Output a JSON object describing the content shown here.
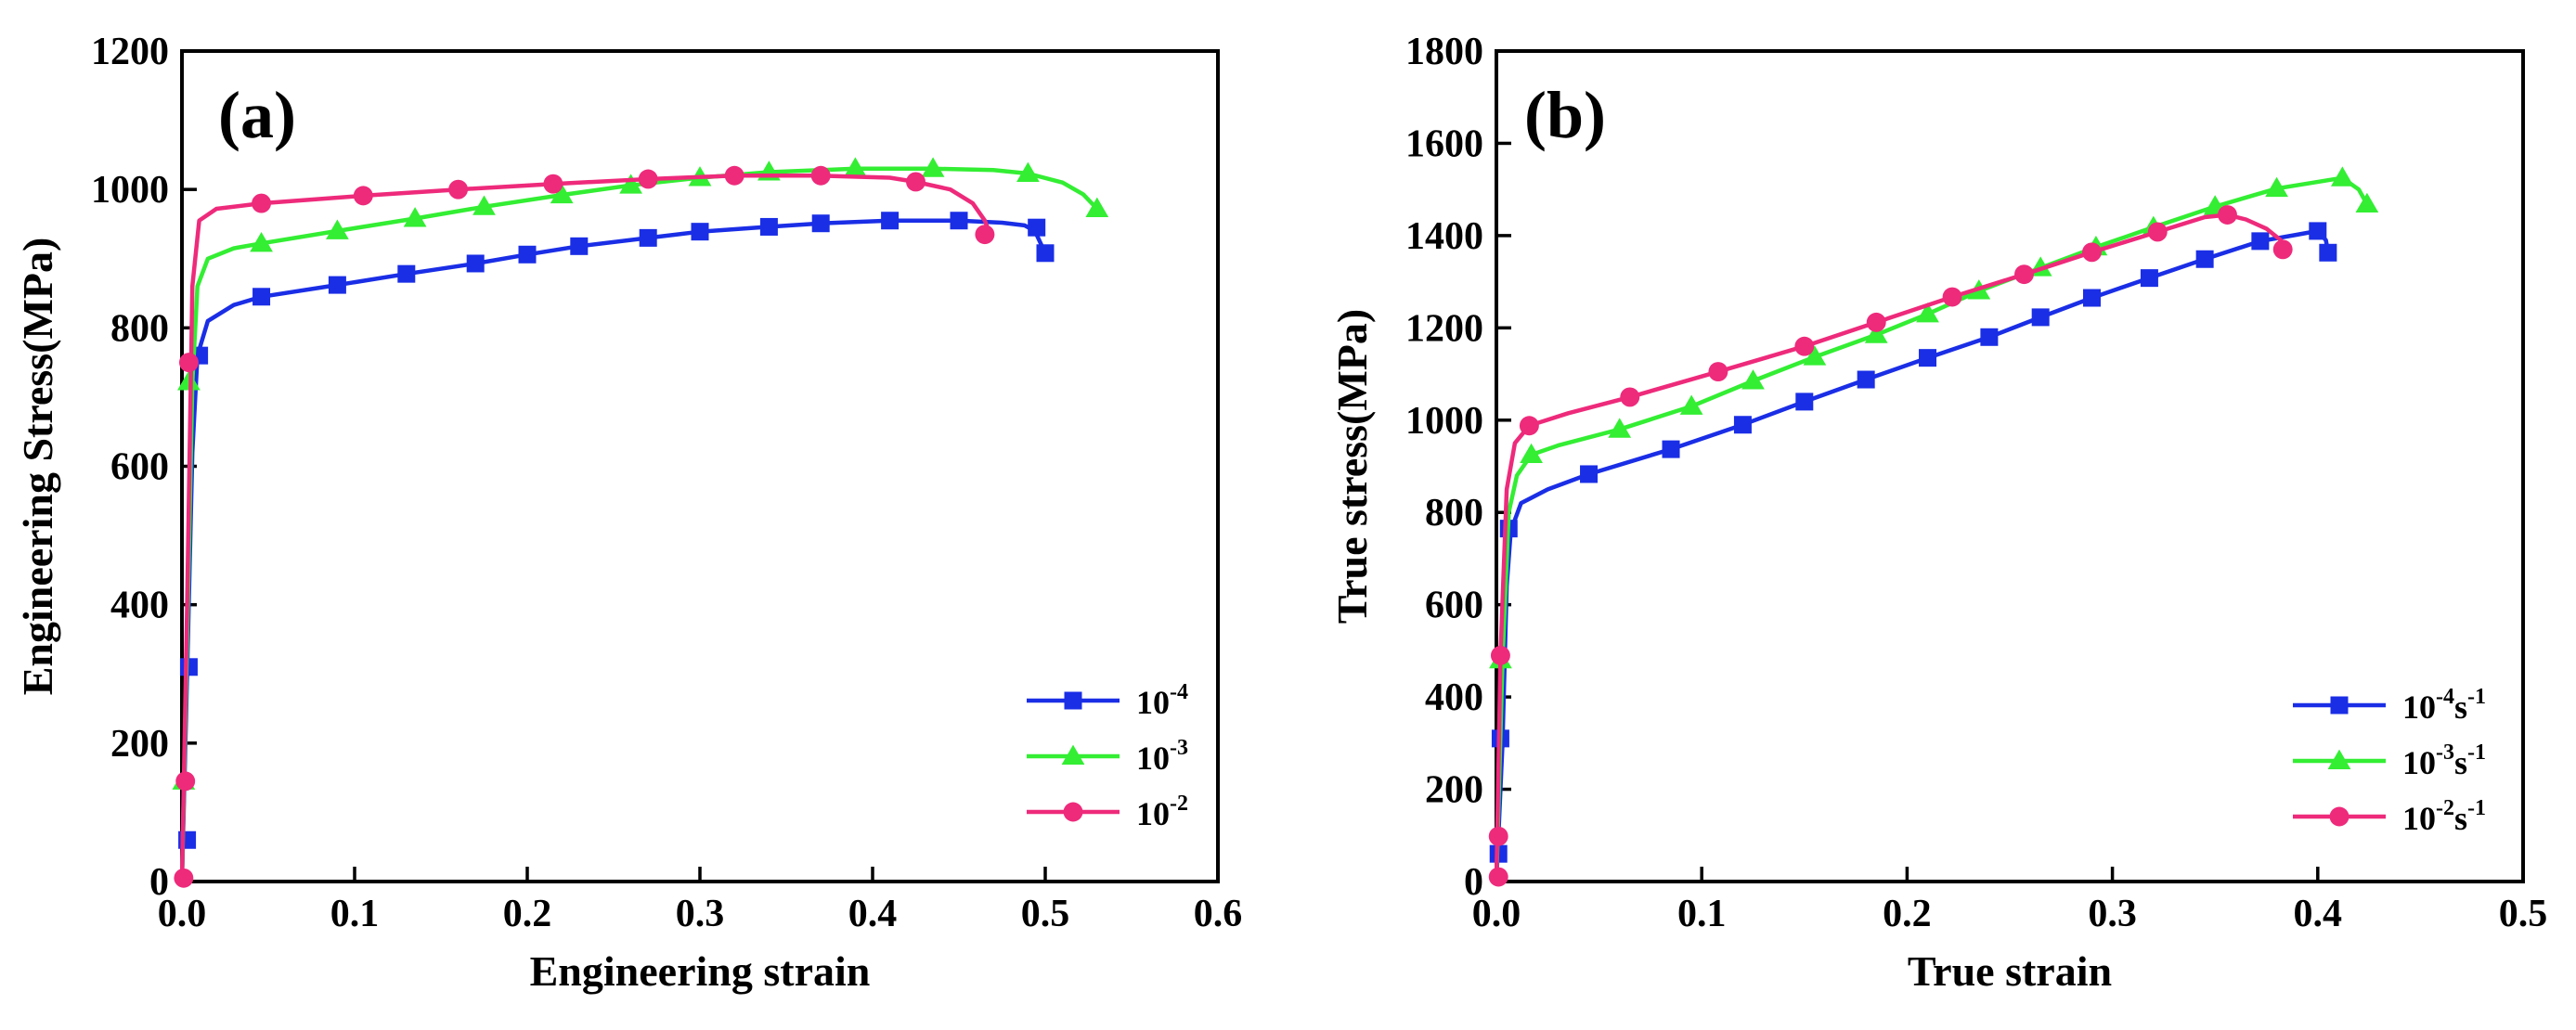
{
  "colors": {
    "s1": "#1a2ee6",
    "s2": "#33ee33",
    "s3": "#ee2a7b"
  },
  "chart_data": [
    {
      "type": "line",
      "panel_label": "(a)",
      "xlabel": "Engineering strain",
      "ylabel": "Engineering Stress(MPa)",
      "xlim": [
        0,
        0.6
      ],
      "ylim": [
        0,
        1200
      ],
      "xticks": [
        0.0,
        0.1,
        0.2,
        0.3,
        0.4,
        0.5,
        0.6
      ],
      "xtick_labels": [
        "0.0",
        "0.1",
        "0.2",
        "0.3",
        "0.4",
        "0.5",
        "0.6"
      ],
      "yticks": [
        0,
        200,
        400,
        600,
        800,
        1000,
        1200
      ],
      "ytick_labels": [
        "0",
        "200",
        "400",
        "600",
        "800",
        "1000",
        "1200"
      ],
      "legend_position": "bottom-right",
      "series": [
        {
          "name": "10-4",
          "legend_base": "10",
          "legend_exp": "-4",
          "legend_tail": "",
          "legend_tail_exp": "",
          "color_key": "s1",
          "marker": "square",
          "curve": [
            [
              0,
              0
            ],
            [
              0.003,
              300
            ],
            [
              0.006,
              620
            ],
            [
              0.009,
              760
            ],
            [
              0.015,
              810
            ],
            [
              0.03,
              833
            ],
            [
              0.046,
              845
            ],
            [
              0.09,
              862
            ],
            [
              0.13,
              878
            ],
            [
              0.17,
              893
            ],
            [
              0.2,
              906
            ],
            [
              0.23,
              918
            ],
            [
              0.27,
              930
            ],
            [
              0.3,
              939
            ],
            [
              0.34,
              946
            ],
            [
              0.37,
              951
            ],
            [
              0.41,
              955
            ],
            [
              0.45,
              955
            ],
            [
              0.475,
              952
            ],
            [
              0.488,
              948
            ],
            [
              0.494,
              940
            ],
            [
              0.5,
              908
            ]
          ],
          "markers": [
            [
              0.003,
              60
            ],
            [
              0.004,
              310
            ],
            [
              0.01,
              760
            ],
            [
              0.046,
              845
            ],
            [
              0.09,
              862
            ],
            [
              0.13,
              878
            ],
            [
              0.17,
              893
            ],
            [
              0.2,
              906
            ],
            [
              0.23,
              918
            ],
            [
              0.27,
              930
            ],
            [
              0.3,
              939
            ],
            [
              0.34,
              946
            ],
            [
              0.37,
              951
            ],
            [
              0.41,
              955
            ],
            [
              0.45,
              955
            ],
            [
              0.495,
              945
            ],
            [
              0.5,
              908
            ]
          ]
        },
        {
          "name": "10-3",
          "legend_base": "10",
          "legend_exp": "-3",
          "legend_tail": "",
          "legend_tail_exp": "",
          "color_key": "s2",
          "marker": "triangle",
          "curve": [
            [
              0,
              0
            ],
            [
              0.003,
              350
            ],
            [
              0.006,
              720
            ],
            [
              0.009,
              860
            ],
            [
              0.015,
              900
            ],
            [
              0.03,
              915
            ],
            [
              0.046,
              922
            ],
            [
              0.09,
              940
            ],
            [
              0.135,
              958
            ],
            [
              0.175,
              975
            ],
            [
              0.22,
              992
            ],
            [
              0.26,
              1006
            ],
            [
              0.3,
              1017
            ],
            [
              0.34,
              1025
            ],
            [
              0.39,
              1030
            ],
            [
              0.435,
              1030
            ],
            [
              0.47,
              1028
            ],
            [
              0.49,
              1023
            ],
            [
              0.51,
              1010
            ],
            [
              0.522,
              993
            ],
            [
              0.53,
              972
            ]
          ],
          "markers": [
            [
              0.001,
              145
            ],
            [
              0.004,
              722
            ],
            [
              0.046,
              922
            ],
            [
              0.09,
              940
            ],
            [
              0.135,
              958
            ],
            [
              0.175,
              975
            ],
            [
              0.22,
              992
            ],
            [
              0.26,
              1006
            ],
            [
              0.3,
              1017
            ],
            [
              0.34,
              1025
            ],
            [
              0.39,
              1030
            ],
            [
              0.435,
              1030
            ],
            [
              0.49,
              1023
            ],
            [
              0.53,
              972
            ]
          ]
        },
        {
          "name": "10-2",
          "legend_base": "10",
          "legend_exp": "-2",
          "legend_tail": "",
          "legend_tail_exp": "",
          "color_key": "s3",
          "marker": "circle",
          "curve": [
            [
              0,
              0
            ],
            [
              0.003,
              400
            ],
            [
              0.006,
              860
            ],
            [
              0.01,
              955
            ],
            [
              0.02,
              972
            ],
            [
              0.046,
              980
            ],
            [
              0.105,
              991
            ],
            [
              0.16,
              1000
            ],
            [
              0.215,
              1008
            ],
            [
              0.27,
              1015
            ],
            [
              0.32,
              1020
            ],
            [
              0.37,
              1020
            ],
            [
              0.41,
              1017
            ],
            [
              0.425,
              1011
            ],
            [
              0.445,
              1000
            ],
            [
              0.458,
              980
            ],
            [
              0.465,
              955
            ],
            [
              0.468,
              935
            ]
          ],
          "markers": [
            [
              0.001,
              5
            ],
            [
              0.002,
              145
            ],
            [
              0.004,
              750
            ],
            [
              0.046,
              980
            ],
            [
              0.105,
              991
            ],
            [
              0.16,
              1000
            ],
            [
              0.215,
              1008
            ],
            [
              0.27,
              1015
            ],
            [
              0.32,
              1020
            ],
            [
              0.37,
              1020
            ],
            [
              0.425,
              1011
            ],
            [
              0.465,
              935
            ]
          ]
        }
      ]
    },
    {
      "type": "line",
      "panel_label": "(b)",
      "xlabel": "True strain",
      "ylabel": "True stress(MPa)",
      "xlim": [
        0,
        0.5
      ],
      "ylim": [
        0,
        1800
      ],
      "xticks": [
        0.0,
        0.1,
        0.2,
        0.3,
        0.4,
        0.5
      ],
      "xtick_labels": [
        "0.0",
        "0.1",
        "0.2",
        "0.3",
        "0.4",
        "0.5"
      ],
      "yticks": [
        0,
        200,
        400,
        600,
        800,
        1000,
        1200,
        1400,
        1600,
        1800
      ],
      "ytick_labels": [
        "0",
        "200",
        "400",
        "600",
        "800",
        "1000",
        "1200",
        "1400",
        "1600",
        "1800"
      ],
      "legend_position": "bottom-right",
      "series": [
        {
          "name": "10-4s-1",
          "legend_base": "10",
          "legend_exp": "-4",
          "legend_tail": "s",
          "legend_tail_exp": "-1",
          "color_key": "s1",
          "marker": "square",
          "curve": [
            [
              0,
              0
            ],
            [
              0.003,
              300
            ],
            [
              0.005,
              640
            ],
            [
              0.007,
              760
            ],
            [
              0.012,
              820
            ],
            [
              0.025,
              850
            ],
            [
              0.045,
              883
            ],
            [
              0.085,
              937
            ],
            [
              0.12,
              990
            ],
            [
              0.15,
              1040
            ],
            [
              0.18,
              1088
            ],
            [
              0.21,
              1135
            ],
            [
              0.24,
              1180
            ],
            [
              0.265,
              1223
            ],
            [
              0.29,
              1265
            ],
            [
              0.318,
              1308
            ],
            [
              0.345,
              1349
            ],
            [
              0.372,
              1388
            ],
            [
              0.39,
              1402
            ],
            [
              0.4,
              1410
            ],
            [
              0.404,
              1390
            ],
            [
              0.405,
              1363
            ]
          ],
          "markers": [
            [
              0.001,
              60
            ],
            [
              0.002,
              310
            ],
            [
              0.006,
              765
            ],
            [
              0.045,
              883
            ],
            [
              0.085,
              937
            ],
            [
              0.12,
              990
            ],
            [
              0.15,
              1040
            ],
            [
              0.18,
              1088
            ],
            [
              0.21,
              1135
            ],
            [
              0.24,
              1180
            ],
            [
              0.265,
              1223
            ],
            [
              0.29,
              1265
            ],
            [
              0.318,
              1308
            ],
            [
              0.345,
              1349
            ],
            [
              0.372,
              1388
            ],
            [
              0.4,
              1410
            ],
            [
              0.405,
              1363
            ]
          ]
        },
        {
          "name": "10-3s-1",
          "legend_base": "10",
          "legend_exp": "-3",
          "legend_tail": "s",
          "legend_tail_exp": "-1",
          "color_key": "s2",
          "marker": "triangle",
          "curve": [
            [
              0,
              0
            ],
            [
              0.003,
              480
            ],
            [
              0.006,
              800
            ],
            [
              0.01,
              880
            ],
            [
              0.017,
              925
            ],
            [
              0.03,
              945
            ],
            [
              0.06,
              980
            ],
            [
              0.095,
              1030
            ],
            [
              0.125,
              1085
            ],
            [
              0.155,
              1137
            ],
            [
              0.185,
              1185
            ],
            [
              0.21,
              1230
            ],
            [
              0.235,
              1280
            ],
            [
              0.265,
              1330
            ],
            [
              0.292,
              1375
            ],
            [
              0.32,
              1418
            ],
            [
              0.35,
              1463
            ],
            [
              0.38,
              1502
            ],
            [
              0.412,
              1525
            ],
            [
              0.42,
              1500
            ],
            [
              0.424,
              1468
            ]
          ],
          "markers": [
            [
              0.002,
              480
            ],
            [
              0.017,
              925
            ],
            [
              0.06,
              980
            ],
            [
              0.095,
              1030
            ],
            [
              0.125,
              1085
            ],
            [
              0.155,
              1137
            ],
            [
              0.185,
              1185
            ],
            [
              0.21,
              1230
            ],
            [
              0.235,
              1280
            ],
            [
              0.265,
              1330
            ],
            [
              0.292,
              1375
            ],
            [
              0.32,
              1418
            ],
            [
              0.35,
              1463
            ],
            [
              0.38,
              1502
            ],
            [
              0.412,
              1525
            ],
            [
              0.424,
              1468
            ]
          ]
        },
        {
          "name": "10-2s-1",
          "legend_base": "10",
          "legend_exp": "-2",
          "legend_tail": "s",
          "legend_tail_exp": "-1",
          "color_key": "s3",
          "marker": "circle",
          "curve": [
            [
              0,
              0
            ],
            [
              0.002,
              490
            ],
            [
              0.005,
              850
            ],
            [
              0.009,
              950
            ],
            [
              0.016,
              988
            ],
            [
              0.035,
              1015
            ],
            [
              0.065,
              1050
            ],
            [
              0.108,
              1105
            ],
            [
              0.15,
              1160
            ],
            [
              0.185,
              1212
            ],
            [
              0.222,
              1267
            ],
            [
              0.257,
              1316
            ],
            [
              0.29,
              1364
            ],
            [
              0.322,
              1408
            ],
            [
              0.345,
              1440
            ],
            [
              0.356,
              1445
            ],
            [
              0.365,
              1435
            ],
            [
              0.375,
              1415
            ],
            [
              0.382,
              1390
            ],
            [
              0.385,
              1370
            ]
          ],
          "markers": [
            [
              0.001,
              10
            ],
            [
              0.001,
              98
            ],
            [
              0.002,
              490
            ],
            [
              0.016,
              988
            ],
            [
              0.065,
              1050
            ],
            [
              0.108,
              1105
            ],
            [
              0.15,
              1160
            ],
            [
              0.185,
              1212
            ],
            [
              0.222,
              1267
            ],
            [
              0.257,
              1316
            ],
            [
              0.29,
              1364
            ],
            [
              0.322,
              1408
            ],
            [
              0.356,
              1445
            ],
            [
              0.383,
              1370
            ]
          ]
        }
      ]
    }
  ]
}
